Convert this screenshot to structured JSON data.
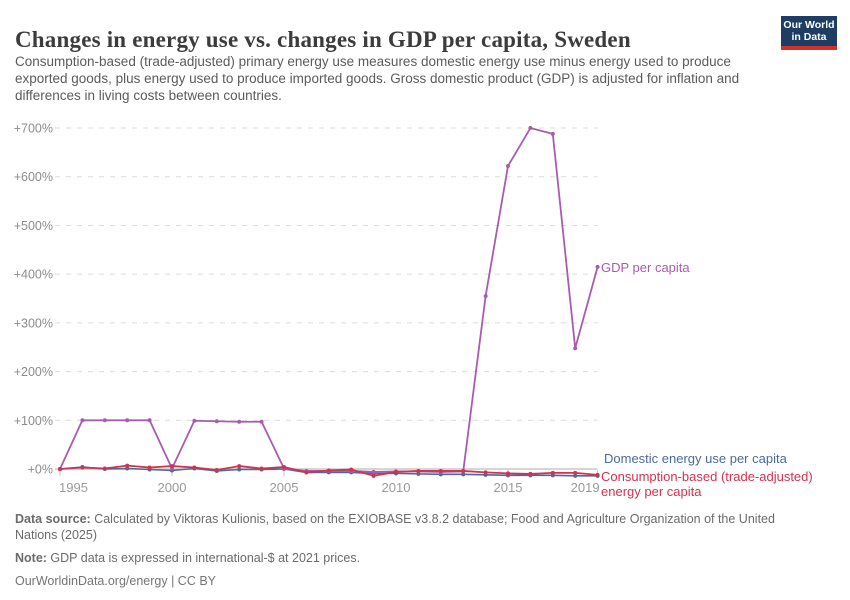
{
  "header": {
    "title": "Changes in energy use vs. changes in GDP per capita, Sweden",
    "subtitle": "Consumption-based (trade-adjusted) primary energy use measures domestic energy use minus energy used to produce exported goods, plus energy used to produce imported goods. Gross domestic product (GDP) is adjusted for inflation and differences in living costs between countries.",
    "logo": {
      "line1": "Our World",
      "line2": "in Data",
      "bg_color": "#1d3d63",
      "bar_color": "#cf322d",
      "text_color": "#ffffff"
    }
  },
  "chart_data": {
    "type": "line",
    "title": "Changes in energy use vs. changes in GDP per capita, Sweden",
    "x": [
      1995,
      1996,
      1997,
      1998,
      1999,
      2000,
      2001,
      2002,
      2003,
      2004,
      2005,
      2006,
      2007,
      2008,
      2009,
      2010,
      2011,
      2012,
      2013,
      2014,
      2015,
      2016,
      2017,
      2018,
      2019
    ],
    "series": [
      {
        "name": "Domestic energy use per capita",
        "color": "#4c6a9c",
        "values": [
          0,
          4,
          0,
          1,
          -1,
          -3,
          1,
          -4,
          -1,
          -1,
          0,
          -7,
          -7,
          -7,
          -9,
          -9,
          -10,
          -11,
          -11,
          -12,
          -13,
          -13,
          -13,
          -14,
          -14
        ]
      },
      {
        "name": "GDP per capita",
        "color": "#a85cb0",
        "values": [
          0,
          100,
          100,
          100,
          100,
          1,
          99,
          98,
          97,
          97,
          1,
          -4,
          -4,
          -4,
          -6,
          -5,
          -5,
          -6,
          -5,
          355,
          622,
          700,
          688,
          248,
          415
        ]
      },
      {
        "name": "Consumption-based (trade-adjusted) energy per capita",
        "color": "#cf3350",
        "values": [
          0,
          3,
          1,
          7,
          3,
          6,
          3,
          -2,
          6,
          1,
          4,
          -7,
          -3,
          -1,
          -14,
          -6,
          -4,
          -4,
          -4,
          -7,
          -9,
          -10,
          -8,
          -8,
          -12
        ]
      }
    ],
    "y_axis": {
      "unit": "%",
      "gridlines": "dashed",
      "ticks": [
        {
          "value": 0,
          "label": "+0%"
        },
        {
          "value": 100,
          "label": "+100%"
        },
        {
          "value": 200,
          "label": "+200%"
        },
        {
          "value": 300,
          "label": "+300%"
        },
        {
          "value": 400,
          "label": "+400%"
        },
        {
          "value": 500,
          "label": "+500%"
        },
        {
          "value": 600,
          "label": "+600%"
        },
        {
          "value": 700,
          "label": "+700%"
        }
      ]
    },
    "x_axis": {
      "ticks": [
        1995,
        2000,
        2005,
        2010,
        2015,
        2019
      ]
    },
    "legend_position": "end-of-line labels at right"
  },
  "annotations": {
    "gdp_label": "GDP per capita",
    "domestic_label": "Domestic energy use per capita",
    "consumption_label_line1": "Consumption-based (trade-adjusted)",
    "consumption_label_line2": "energy per capita"
  },
  "footer": {
    "source_label": "Data source:",
    "source_text": " Calculated by Viktoras Kulionis, based on the EXIOBASE v3.8.2 database; Food and Agriculture Organization of the United Nations (2025)",
    "note_label": "Note:",
    "note_text": " GDP data is expressed in international-$ at 2021 prices.",
    "citation": "OurWorldinData.org/energy | CC BY"
  }
}
